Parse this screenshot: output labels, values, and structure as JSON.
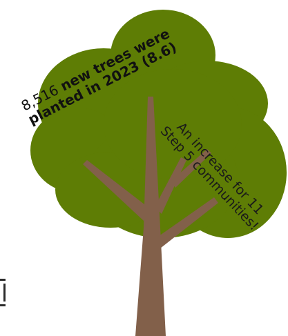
{
  "infographic": {
    "stat_number": "8,516",
    "stat_rest": "new trees were planted in 2023 (8.6)",
    "increase": "An increase for 11 Step 5 communities!"
  },
  "colors": {
    "canopy": "#5e7d05",
    "trunk": "#82604a",
    "text": "#111111"
  }
}
